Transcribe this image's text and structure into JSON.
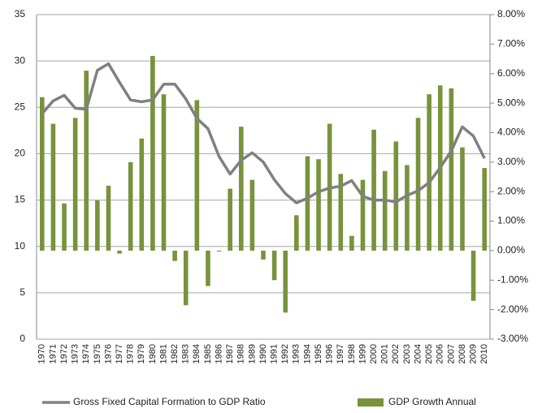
{
  "chart_data": {
    "type": "bar-line",
    "categories": [
      "1970",
      "1971",
      "1972",
      "1973",
      "1974",
      "1975",
      "1976",
      "1977",
      "1978",
      "1979",
      "1980",
      "1981",
      "1982",
      "1983",
      "1984",
      "1985",
      "1986",
      "1987",
      "1988",
      "1989",
      "1990",
      "1991",
      "1992",
      "1993",
      "1994",
      "1995",
      "1996",
      "1997",
      "1998",
      "1999",
      "2000",
      "2001",
      "2002",
      "2003",
      "2004",
      "2005",
      "2006",
      "2007",
      "2008",
      "2009",
      "2010"
    ],
    "series": [
      {
        "name": "Gross Fixed Capital Formation to GDP Ratio",
        "type": "line",
        "color": "#808080",
        "axis": "y",
        "values": [
          24.3,
          25.7,
          26.3,
          24.9,
          24.8,
          29.0,
          29.7,
          27.7,
          25.8,
          25.6,
          25.8,
          27.5,
          27.5,
          25.9,
          23.8,
          22.7,
          19.7,
          17.8,
          19.3,
          20.1,
          19.1,
          17.2,
          15.7,
          14.7,
          15.2,
          15.9,
          16.3,
          16.5,
          17.1,
          15.4,
          15.0,
          15.0,
          14.8,
          15.5,
          16.0,
          16.9,
          18.5,
          20.3,
          22.9,
          21.9,
          19.5
        ]
      },
      {
        "name": "GDP Growth Annual",
        "type": "bar",
        "color": "#77933c",
        "axis": "y2",
        "values": [
          5.2,
          4.3,
          1.6,
          4.5,
          6.1,
          1.7,
          2.2,
          -0.1,
          3.0,
          3.8,
          6.6,
          5.3,
          -0.35,
          -1.85,
          5.1,
          -1.2,
          -0.03,
          2.1,
          4.2,
          2.4,
          -0.3,
          -1.0,
          -2.1,
          1.2,
          3.2,
          3.1,
          4.3,
          2.6,
          0.5,
          2.4,
          4.1,
          2.7,
          3.7,
          2.9,
          4.5,
          5.3,
          5.6,
          5.5,
          3.5,
          -1.7,
          2.8
        ]
      }
    ],
    "ylim": [
      0,
      35
    ],
    "yticks": [
      0,
      5,
      10,
      15,
      20,
      25,
      30,
      35
    ],
    "y2lim": [
      -3,
      8
    ],
    "y2ticks": [
      {
        "value": -3,
        "label": "-3.00%"
      },
      {
        "value": -2,
        "label": "-2.00%"
      },
      {
        "value": -1,
        "label": "-1.00%"
      },
      {
        "value": 0,
        "label": "0.00%"
      },
      {
        "value": 1,
        "label": "1.00%"
      },
      {
        "value": 2,
        "label": "2.00%"
      },
      {
        "value": 3,
        "label": "3.00%"
      },
      {
        "value": 4,
        "label": "4.00%"
      },
      {
        "value": 5,
        "label": "5.00%"
      },
      {
        "value": 6,
        "label": "6.00%"
      },
      {
        "value": 7,
        "label": "7.00%"
      },
      {
        "value": 8,
        "label": "8.00%"
      }
    ],
    "grid": true,
    "legend": "bottom"
  }
}
